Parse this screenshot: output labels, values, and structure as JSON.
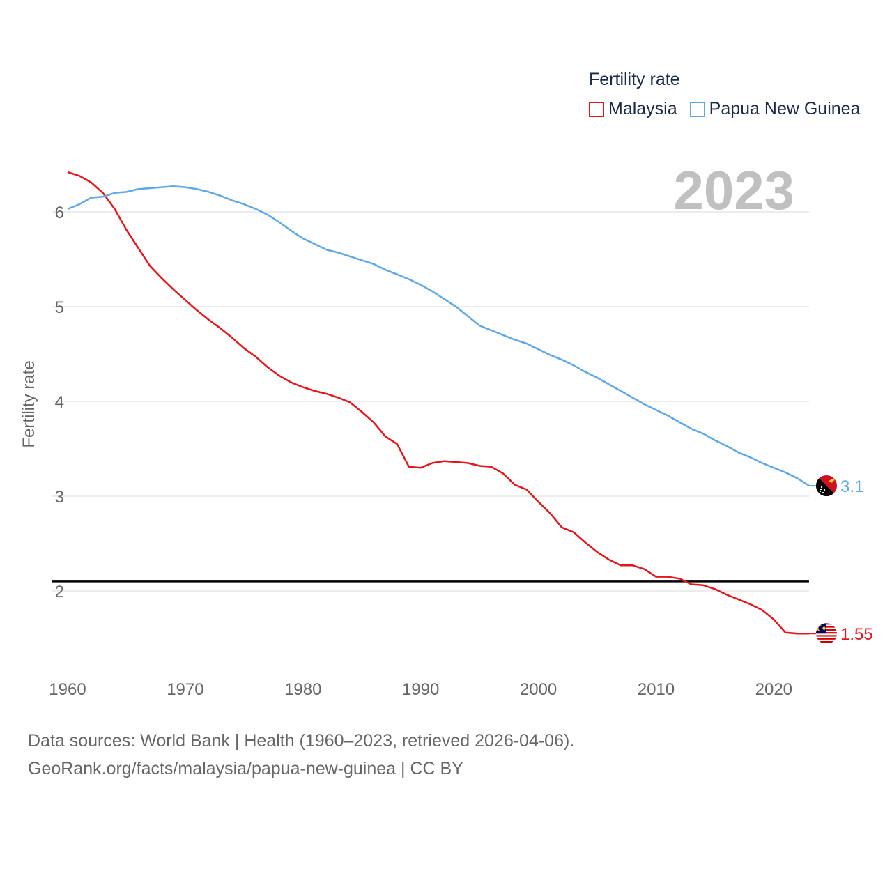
{
  "legend": {
    "title": "Fertility rate",
    "items": [
      {
        "label": "Malaysia",
        "color": "#e8141b"
      },
      {
        "label": "Papua New Guinea",
        "color": "#5ea8e6"
      }
    ]
  },
  "current_year": "2023",
  "footer": {
    "line1": "Data sources: World Bank | Health (1960–2023, retrieved 2026-04-06).",
    "line2": "GeoRank.org/facts/malaysia/papua-new-guinea | CC BY"
  },
  "chart_data": {
    "type": "line",
    "title": "Fertility rate",
    "xlabel": "",
    "ylabel": "Fertility rate",
    "xlim": [
      1960,
      2023
    ],
    "ylim": [
      1.2,
      6.6
    ],
    "x_ticks": [
      "1960",
      "1970",
      "1980",
      "1990",
      "2000",
      "2010",
      "2020"
    ],
    "y_ticks": [
      "2",
      "3",
      "4",
      "5",
      "6"
    ],
    "grid": true,
    "reference_line": {
      "y": 2.1,
      "color": "#000000"
    },
    "x": [
      1960,
      1961,
      1962,
      1963,
      1964,
      1965,
      1966,
      1967,
      1968,
      1969,
      1970,
      1971,
      1972,
      1973,
      1974,
      1975,
      1976,
      1977,
      1978,
      1979,
      1980,
      1981,
      1982,
      1983,
      1984,
      1985,
      1986,
      1987,
      1988,
      1989,
      1990,
      1991,
      1992,
      1993,
      1994,
      1995,
      1996,
      1997,
      1998,
      1999,
      2000,
      2001,
      2002,
      2003,
      2004,
      2005,
      2006,
      2007,
      2008,
      2009,
      2010,
      2011,
      2012,
      2013,
      2014,
      2015,
      2016,
      2017,
      2018,
      2019,
      2020,
      2021,
      2022,
      2023
    ],
    "series": [
      {
        "name": "Malaysia",
        "color": "#e8141b",
        "end_label": "1.55",
        "flag": "malaysia-flag-icon",
        "values": [
          6.42,
          6.38,
          6.31,
          6.2,
          6.03,
          5.81,
          5.62,
          5.43,
          5.3,
          5.18,
          5.07,
          4.96,
          4.86,
          4.77,
          4.67,
          4.56,
          4.47,
          4.36,
          4.27,
          4.2,
          4.15,
          4.11,
          4.08,
          4.04,
          3.99,
          3.89,
          3.78,
          3.63,
          3.55,
          3.31,
          3.3,
          3.35,
          3.37,
          3.36,
          3.35,
          3.32,
          3.31,
          3.24,
          3.12,
          3.07,
          2.94,
          2.82,
          2.67,
          2.62,
          2.51,
          2.41,
          2.33,
          2.27,
          2.27,
          2.23,
          2.15,
          2.15,
          2.13,
          2.07,
          2.06,
          2.02,
          1.96,
          1.91,
          1.86,
          1.8,
          1.7,
          1.56,
          1.55,
          1.55
        ]
      },
      {
        "name": "Papua New Guinea",
        "color": "#5ea8e6",
        "end_label": "3.1",
        "flag": "papua-new-guinea-flag-icon",
        "values": [
          6.03,
          6.08,
          6.15,
          6.16,
          6.2,
          6.21,
          6.24,
          6.25,
          6.26,
          6.27,
          6.26,
          6.24,
          6.21,
          6.17,
          6.12,
          6.08,
          6.03,
          5.97,
          5.89,
          5.8,
          5.72,
          5.66,
          5.6,
          5.57,
          5.53,
          5.49,
          5.45,
          5.39,
          5.34,
          5.29,
          5.23,
          5.16,
          5.08,
          5.0,
          4.9,
          4.8,
          4.75,
          4.7,
          4.65,
          4.61,
          4.55,
          4.49,
          4.44,
          4.38,
          4.31,
          4.25,
          4.18,
          4.11,
          4.04,
          3.97,
          3.91,
          3.85,
          3.78,
          3.71,
          3.66,
          3.59,
          3.53,
          3.46,
          3.41,
          3.35,
          3.3,
          3.25,
          3.19,
          3.11
        ]
      }
    ]
  }
}
